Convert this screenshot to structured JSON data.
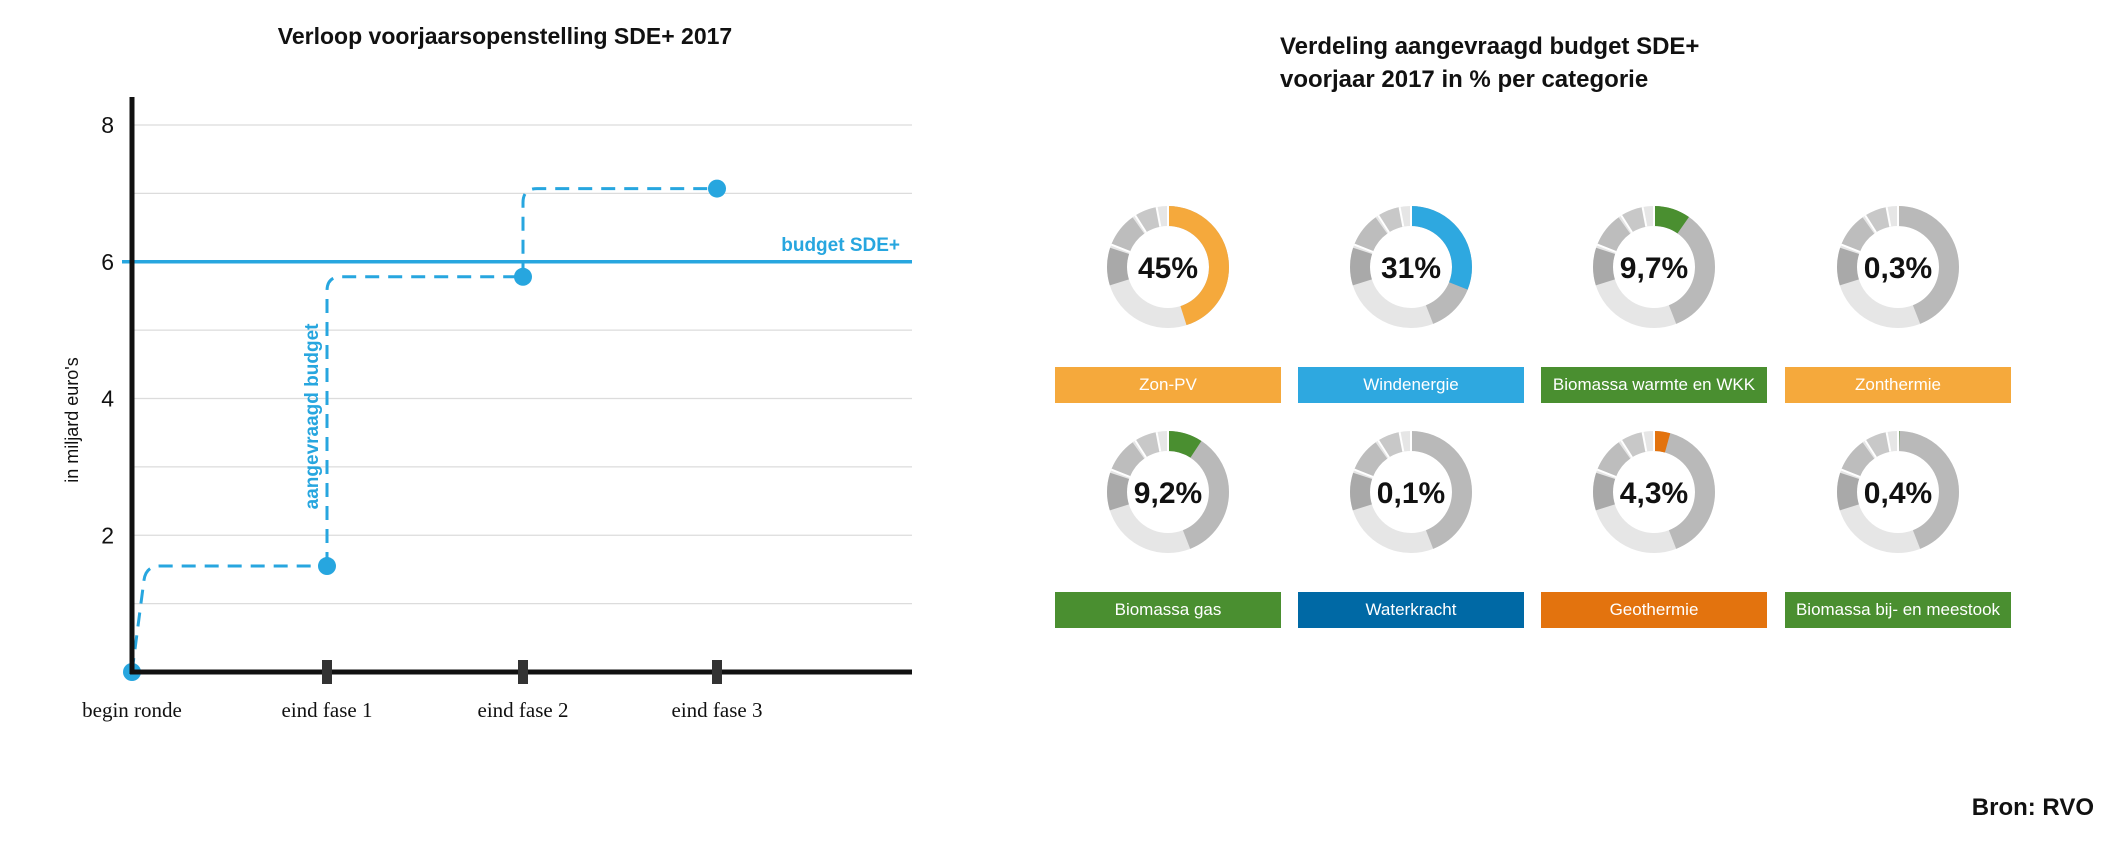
{
  "chart_data": [
    {
      "type": "line",
      "title": "Verloop voorjaarsopenstelling SDE+ 2017",
      "ylabel": "in miljard euro's",
      "ylim": [
        0,
        8.4
      ],
      "yticks": [
        "2",
        "4",
        "6",
        "8"
      ],
      "categories": [
        "begin ronde",
        "eind fase 1",
        "eind fase 2",
        "eind fase 3"
      ],
      "grid": true,
      "series": [
        {
          "name": "aangevraagd budget",
          "style": "dashed-step",
          "color": "#27a6df",
          "values": [
            0,
            1.55,
            5.78,
            7.07
          ]
        },
        {
          "name": "budget SDE+",
          "style": "solid-horizontal",
          "color": "#27a6df",
          "value": 6
        }
      ]
    },
    {
      "type": "pie",
      "title_lines": [
        "Verdeling aangevraagd budget SDE+",
        "voorjaar 2017 in % per categorie"
      ],
      "items": [
        {
          "label": "Zon-PV",
          "pct_text": "45%",
          "value": 45,
          "color": "#f5a93c"
        },
        {
          "label": "Windenergie",
          "pct_text": "31%",
          "value": 31,
          "color": "#2ea8e0"
        },
        {
          "label": "Biomassa warmte en WKK",
          "pct_text": "9,7%",
          "value": 9.7,
          "color": "#4a8f30"
        },
        {
          "label": "Zonthermie",
          "pct_text": "0,3%",
          "value": 0.3,
          "color": "#f5a93c"
        },
        {
          "label": "Biomassa gas",
          "pct_text": "9,2%",
          "value": 9.2,
          "color": "#4a8f30"
        },
        {
          "label": "Waterkracht",
          "pct_text": "0,1%",
          "value": 0.1,
          "color": "#0069a5"
        },
        {
          "label": "Geothermie",
          "pct_text": "4,3%",
          "value": 4.3,
          "color": "#e3730e"
        },
        {
          "label": "Biomassa bij- en meestook",
          "pct_text": "0,4%",
          "value": 0.4,
          "color": "#4a8f30"
        }
      ]
    }
  ],
  "source": "Bron: RVO"
}
